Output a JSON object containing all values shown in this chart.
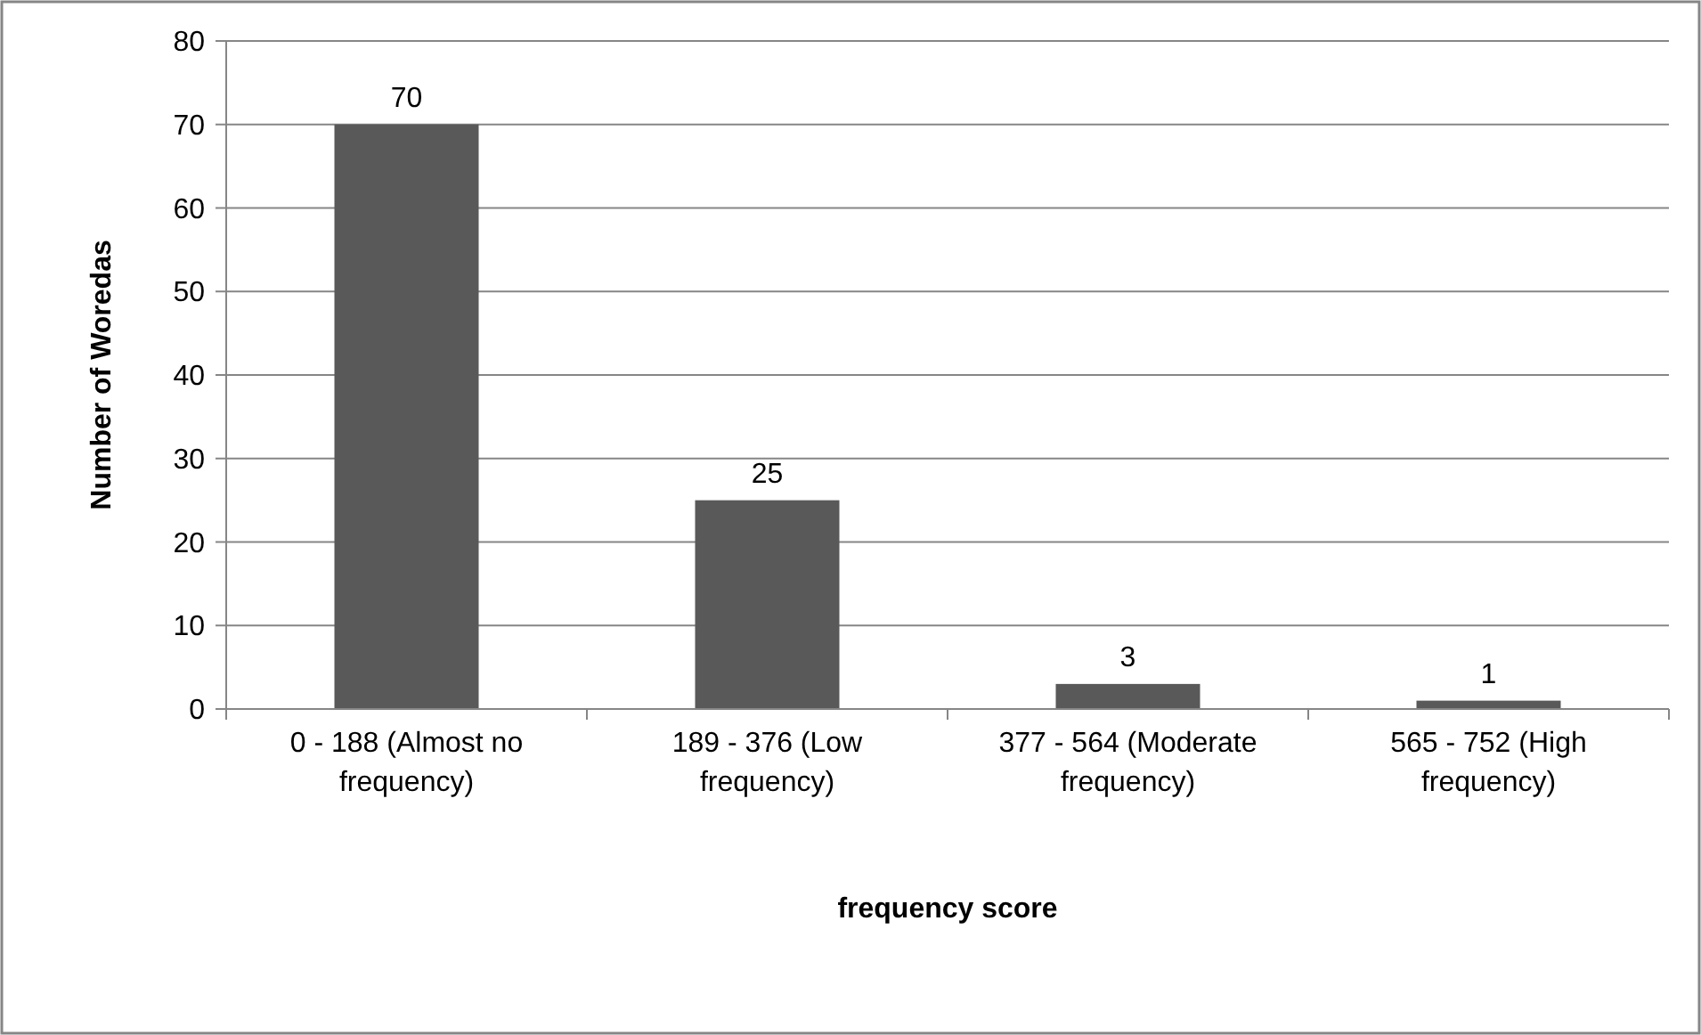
{
  "chart_data": {
    "type": "bar",
    "xlabel": "frequency score",
    "ylabel": "Number of Woredas",
    "categories": [
      "0 - 188 (Almost no frequency)",
      "189 - 376 (Low frequency)",
      "377 - 564 (Moderate frequency)",
      "565 - 752 (High frequency)"
    ],
    "values": [
      70,
      25,
      3,
      1
    ],
    "color": "#595959",
    "ylim": [
      0,
      80
    ],
    "yticks": [
      0,
      10,
      20,
      30,
      40,
      50,
      60,
      70,
      80
    ],
    "grid": "y",
    "data_labels": true
  }
}
